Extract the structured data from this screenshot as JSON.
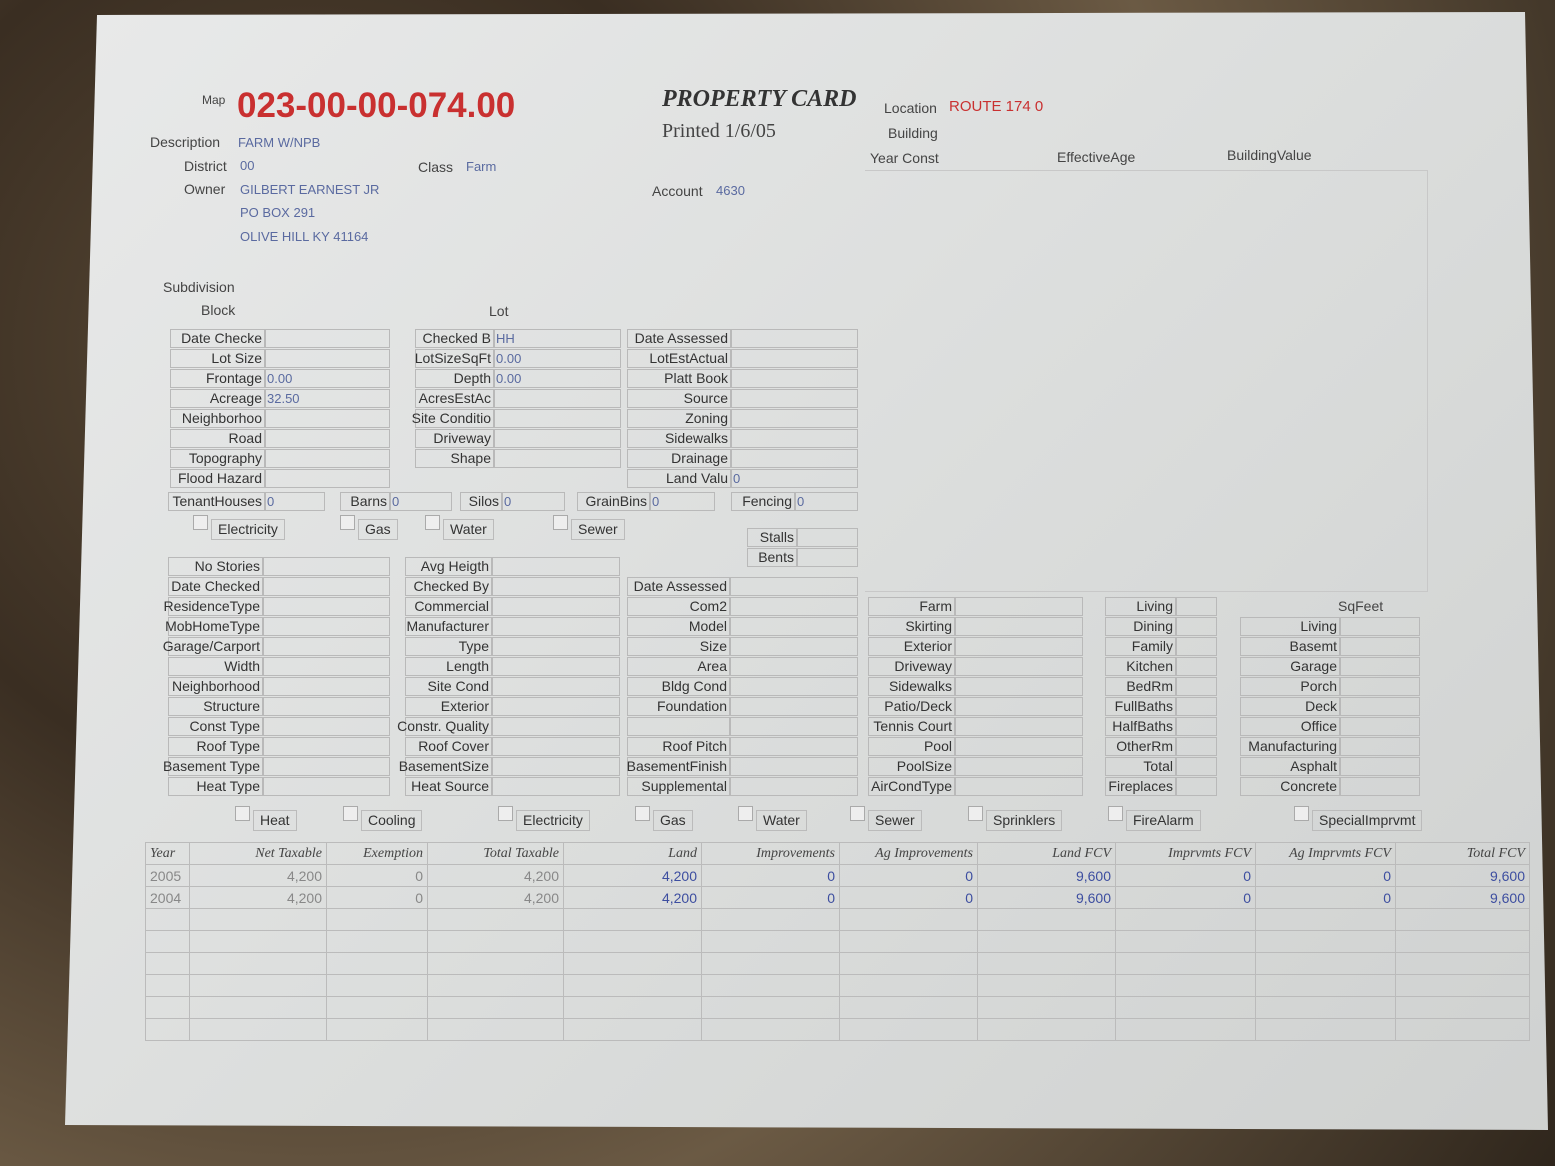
{
  "header": {
    "map_label": "Map",
    "map_number": "023-00-00-074.00",
    "title": "PROPERTY CARD",
    "printed": "Printed 1/6/05",
    "location_label": "Location",
    "location": "ROUTE 174 0",
    "building_label": "Building",
    "year_const_label": "Year Const",
    "effective_age_label": "EffectiveAge",
    "building_value_label": "BuildingValue",
    "description_label": "Description",
    "description": "FARM W/NPB",
    "district_label": "District",
    "district": "00",
    "class_label": "Class",
    "class": "Farm",
    "owner_label": "Owner",
    "owner": "GILBERT EARNEST JR",
    "address1": "PO BOX 291",
    "address2": "OLIVE HILL KY 41164",
    "account_label": "Account",
    "account": "4630",
    "subdivision_label": "Subdivision",
    "block_label": "Block",
    "lot_label": "Lot"
  },
  "land": {
    "colA": [
      [
        "Date Checke",
        ""
      ],
      [
        "Lot Size",
        ""
      ],
      [
        "Frontage",
        "0.00"
      ],
      [
        "Acreage",
        "32.50"
      ],
      [
        "Neighborhoo",
        ""
      ],
      [
        "Road",
        ""
      ],
      [
        "Topography",
        ""
      ],
      [
        "Flood Hazard",
        ""
      ]
    ],
    "colB": [
      [
        "Checked B",
        "HH"
      ],
      [
        "LotSizeSqFt",
        "0.00"
      ],
      [
        "Depth",
        "0.00"
      ],
      [
        "AcresEstAc",
        ""
      ],
      [
        "Site Conditio",
        ""
      ],
      [
        "Driveway",
        ""
      ],
      [
        "Shape",
        ""
      ]
    ],
    "colC": [
      [
        "Date Assessed",
        ""
      ],
      [
        "LotEstActual",
        ""
      ],
      [
        "Platt Book",
        ""
      ],
      [
        "Source",
        ""
      ],
      [
        "Zoning",
        ""
      ],
      [
        "Sidewalks",
        ""
      ],
      [
        "Drainage",
        ""
      ],
      [
        "Land Valu",
        "0"
      ]
    ],
    "outbuildings": [
      [
        "TenantHouses",
        "0"
      ],
      [
        "Barns",
        "0"
      ],
      [
        "Silos",
        "0"
      ],
      [
        "GrainBins",
        "0"
      ],
      [
        "Fencing",
        "0"
      ]
    ],
    "utilities": [
      "Electricity",
      "Gas",
      "Water",
      "Sewer"
    ],
    "stalls": [
      [
        "Stalls",
        ""
      ],
      [
        "Bents",
        ""
      ]
    ]
  },
  "building": {
    "colA": [
      [
        "No Stories",
        ""
      ],
      [
        "Date Checked",
        ""
      ],
      [
        "ResidenceType",
        ""
      ],
      [
        "MobHomeType",
        ""
      ],
      [
        "Garage/Carport",
        ""
      ],
      [
        "Width",
        ""
      ],
      [
        "Neighborhood",
        ""
      ],
      [
        "Structure",
        ""
      ],
      [
        "Const Type",
        ""
      ],
      [
        "Roof Type",
        ""
      ],
      [
        "Basement Type",
        ""
      ],
      [
        "Heat Type",
        ""
      ]
    ],
    "colB": [
      [
        "Avg Heigth",
        ""
      ],
      [
        "Checked By",
        ""
      ],
      [
        "Commercial",
        ""
      ],
      [
        "Manufacturer",
        ""
      ],
      [
        "Type",
        ""
      ],
      [
        "Length",
        ""
      ],
      [
        "Site Cond",
        ""
      ],
      [
        "Exterior",
        ""
      ],
      [
        "Constr. Quality",
        ""
      ],
      [
        "Roof Cover",
        ""
      ],
      [
        "BasementSize",
        ""
      ],
      [
        "Heat Source",
        ""
      ]
    ],
    "colC": [
      [
        "Date Assessed",
        ""
      ],
      [
        "Com2",
        ""
      ],
      [
        "Model",
        ""
      ],
      [
        "Size",
        ""
      ],
      [
        "Area",
        ""
      ],
      [
        "Bldg Cond",
        ""
      ],
      [
        "Foundation",
        ""
      ],
      [
        "",
        ""
      ],
      [
        "Roof Pitch",
        ""
      ],
      [
        "BasementFinish",
        ""
      ],
      [
        "Supplemental",
        ""
      ]
    ],
    "colD": [
      [
        "Farm",
        ""
      ],
      [
        "Skirting",
        ""
      ],
      [
        "Exterior",
        ""
      ],
      [
        "Driveway",
        ""
      ],
      [
        "Sidewalks",
        ""
      ],
      [
        "Patio/Deck",
        ""
      ],
      [
        "Tennis Court",
        ""
      ],
      [
        "Pool",
        ""
      ],
      [
        "PoolSize",
        ""
      ],
      [
        "AirCondType",
        ""
      ]
    ],
    "colE": [
      [
        "Living",
        ""
      ],
      [
        "Dining",
        ""
      ],
      [
        "Family",
        ""
      ],
      [
        "Kitchen",
        ""
      ],
      [
        "BedRm",
        ""
      ],
      [
        "FullBaths",
        ""
      ],
      [
        "HalfBaths",
        ""
      ],
      [
        "OtherRm",
        ""
      ],
      [
        "Total",
        ""
      ],
      [
        "Fireplaces",
        ""
      ]
    ],
    "sqfeet_label": "SqFeet",
    "colF": [
      [
        "Living",
        ""
      ],
      [
        "Basemt",
        ""
      ],
      [
        "Garage",
        ""
      ],
      [
        "Porch",
        ""
      ],
      [
        "Deck",
        ""
      ],
      [
        "Office",
        ""
      ],
      [
        "Manufacturing",
        ""
      ],
      [
        "Asphalt",
        ""
      ],
      [
        "Concrete",
        ""
      ]
    ],
    "features": [
      "Heat",
      "Cooling",
      "Electricity",
      "Gas",
      "Water",
      "Sewer",
      "Sprinklers",
      "FireAlarm",
      "SpecialImprvmt"
    ]
  },
  "values_table": {
    "headers": [
      "Year",
      "Net Taxable",
      "Exemption",
      "Total Taxable",
      "Land",
      "Improvements",
      "Ag Improvements",
      "Land FCV",
      "Imprvmts FCV",
      "Ag Imprvmts FCV",
      "Total FCV"
    ],
    "rows": [
      [
        "2005",
        "4,200",
        "0",
        "4,200",
        "4,200",
        "0",
        "0",
        "9,600",
        "0",
        "0",
        "9,600"
      ],
      [
        "2004",
        "4,200",
        "0",
        "4,200",
        "4,200",
        "0",
        "0",
        "9,600",
        "0",
        "0",
        "9,600"
      ]
    ]
  }
}
